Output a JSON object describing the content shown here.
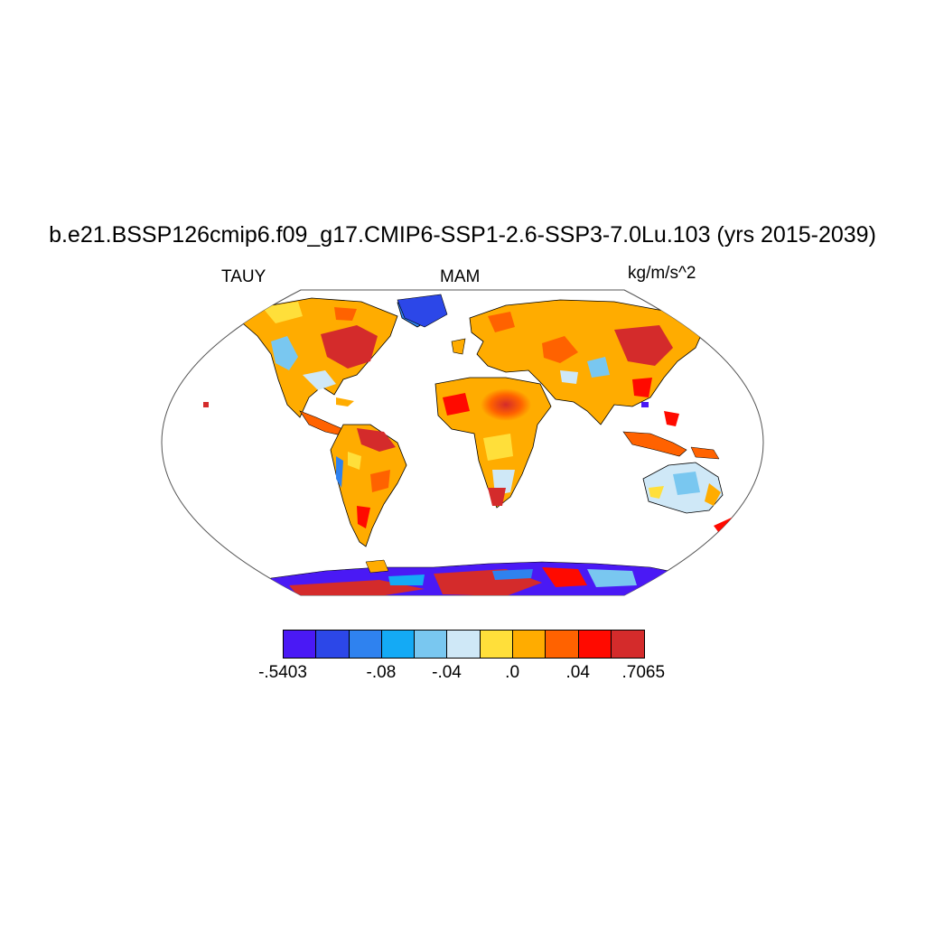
{
  "title": "b.e21.BSSP126cmip6.f09_g17.CMIP6-SSP1-2.6-SSP3-7.0Lu.103 (yrs 2015-2039)",
  "variable": "TAUY",
  "season": "MAM",
  "units": "kg/m/s^2",
  "colorbar": {
    "colors": [
      "#4a19f5",
      "#2c47e8",
      "#2f82ef",
      "#14aaf5",
      "#79c7f0",
      "#cfe8f7",
      "#ffdf3a",
      "#ffac00",
      "#ff6200",
      "#ff0a00",
      "#d42b2b"
    ],
    "labels": [
      {
        "text": "-.5403",
        "boundary": 0
      },
      {
        "text": "-.08",
        "boundary": 3
      },
      {
        "text": "-.04",
        "boundary": 5
      },
      {
        "text": ".0",
        "boundary": 7
      },
      {
        "text": ".04",
        "boundary": 9
      },
      {
        "text": ".7065",
        "boundary": 11
      }
    ]
  }
}
